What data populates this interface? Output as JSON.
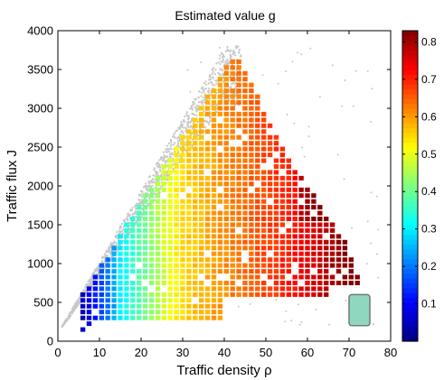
{
  "chart_data": {
    "type": "heatmap",
    "title": "Estimated value g",
    "xlabel": "Traffic density ρ",
    "ylabel": "Traffic flux J",
    "xlim": [
      0,
      80
    ],
    "ylim": [
      0,
      4000
    ],
    "xticks": [
      0,
      10,
      20,
      30,
      40,
      50,
      60,
      70,
      80
    ],
    "yticks": [
      0,
      500,
      1000,
      1500,
      2000,
      2500,
      3000,
      3500,
      4000
    ],
    "colorbar": {
      "colormap": "jet",
      "range": [
        0,
        0.83
      ],
      "ticks": [
        0.1,
        0.2,
        0.3,
        0.4,
        0.5,
        0.6,
        0.7,
        0.8
      ]
    },
    "background_points_color": "#c8c8c8",
    "bin_size": {
      "rho": 1.5,
      "flux": 75
    },
    "description_regions": [
      {
        "rho_range": [
          6,
          15
        ],
        "g_range": [
          0.05,
          0.3
        ]
      },
      {
        "rho_range": [
          15,
          30
        ],
        "g_range": [
          0.3,
          0.55
        ]
      },
      {
        "rho_range": [
          30,
          55
        ],
        "g_range": [
          0.55,
          0.7
        ]
      },
      {
        "rho_range": [
          55,
          70
        ],
        "g_range": [
          0.7,
          0.83
        ]
      }
    ],
    "highlight_box": {
      "rho_range": [
        70,
        75
      ],
      "flux_range": [
        200,
        600
      ],
      "fill": "#8fd8bf",
      "stroke": "#777777"
    }
  }
}
